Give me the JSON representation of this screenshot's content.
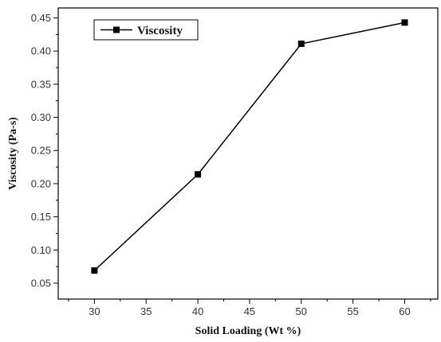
{
  "chart_data": {
    "type": "line",
    "title": "",
    "xlabel": "Solid Loading (Wt %)",
    "ylabel": "Viscosity (Pa-s)",
    "xlim": [
      26.5,
      63.2
    ],
    "ylim": [
      0.026,
      0.465
    ],
    "xticks": [
      30,
      35,
      40,
      45,
      50,
      55,
      60
    ],
    "yticks": [
      0.05,
      0.1,
      0.15,
      0.2,
      0.25,
      0.3,
      0.35,
      0.4,
      0.45
    ],
    "grid": false,
    "legend_position": "top-left",
    "series": [
      {
        "name": "Viscosity",
        "marker": "square",
        "color": "#000000",
        "x": [
          30,
          40,
          50,
          60
        ],
        "y": [
          0.069,
          0.214,
          0.411,
          0.443
        ]
      }
    ]
  }
}
